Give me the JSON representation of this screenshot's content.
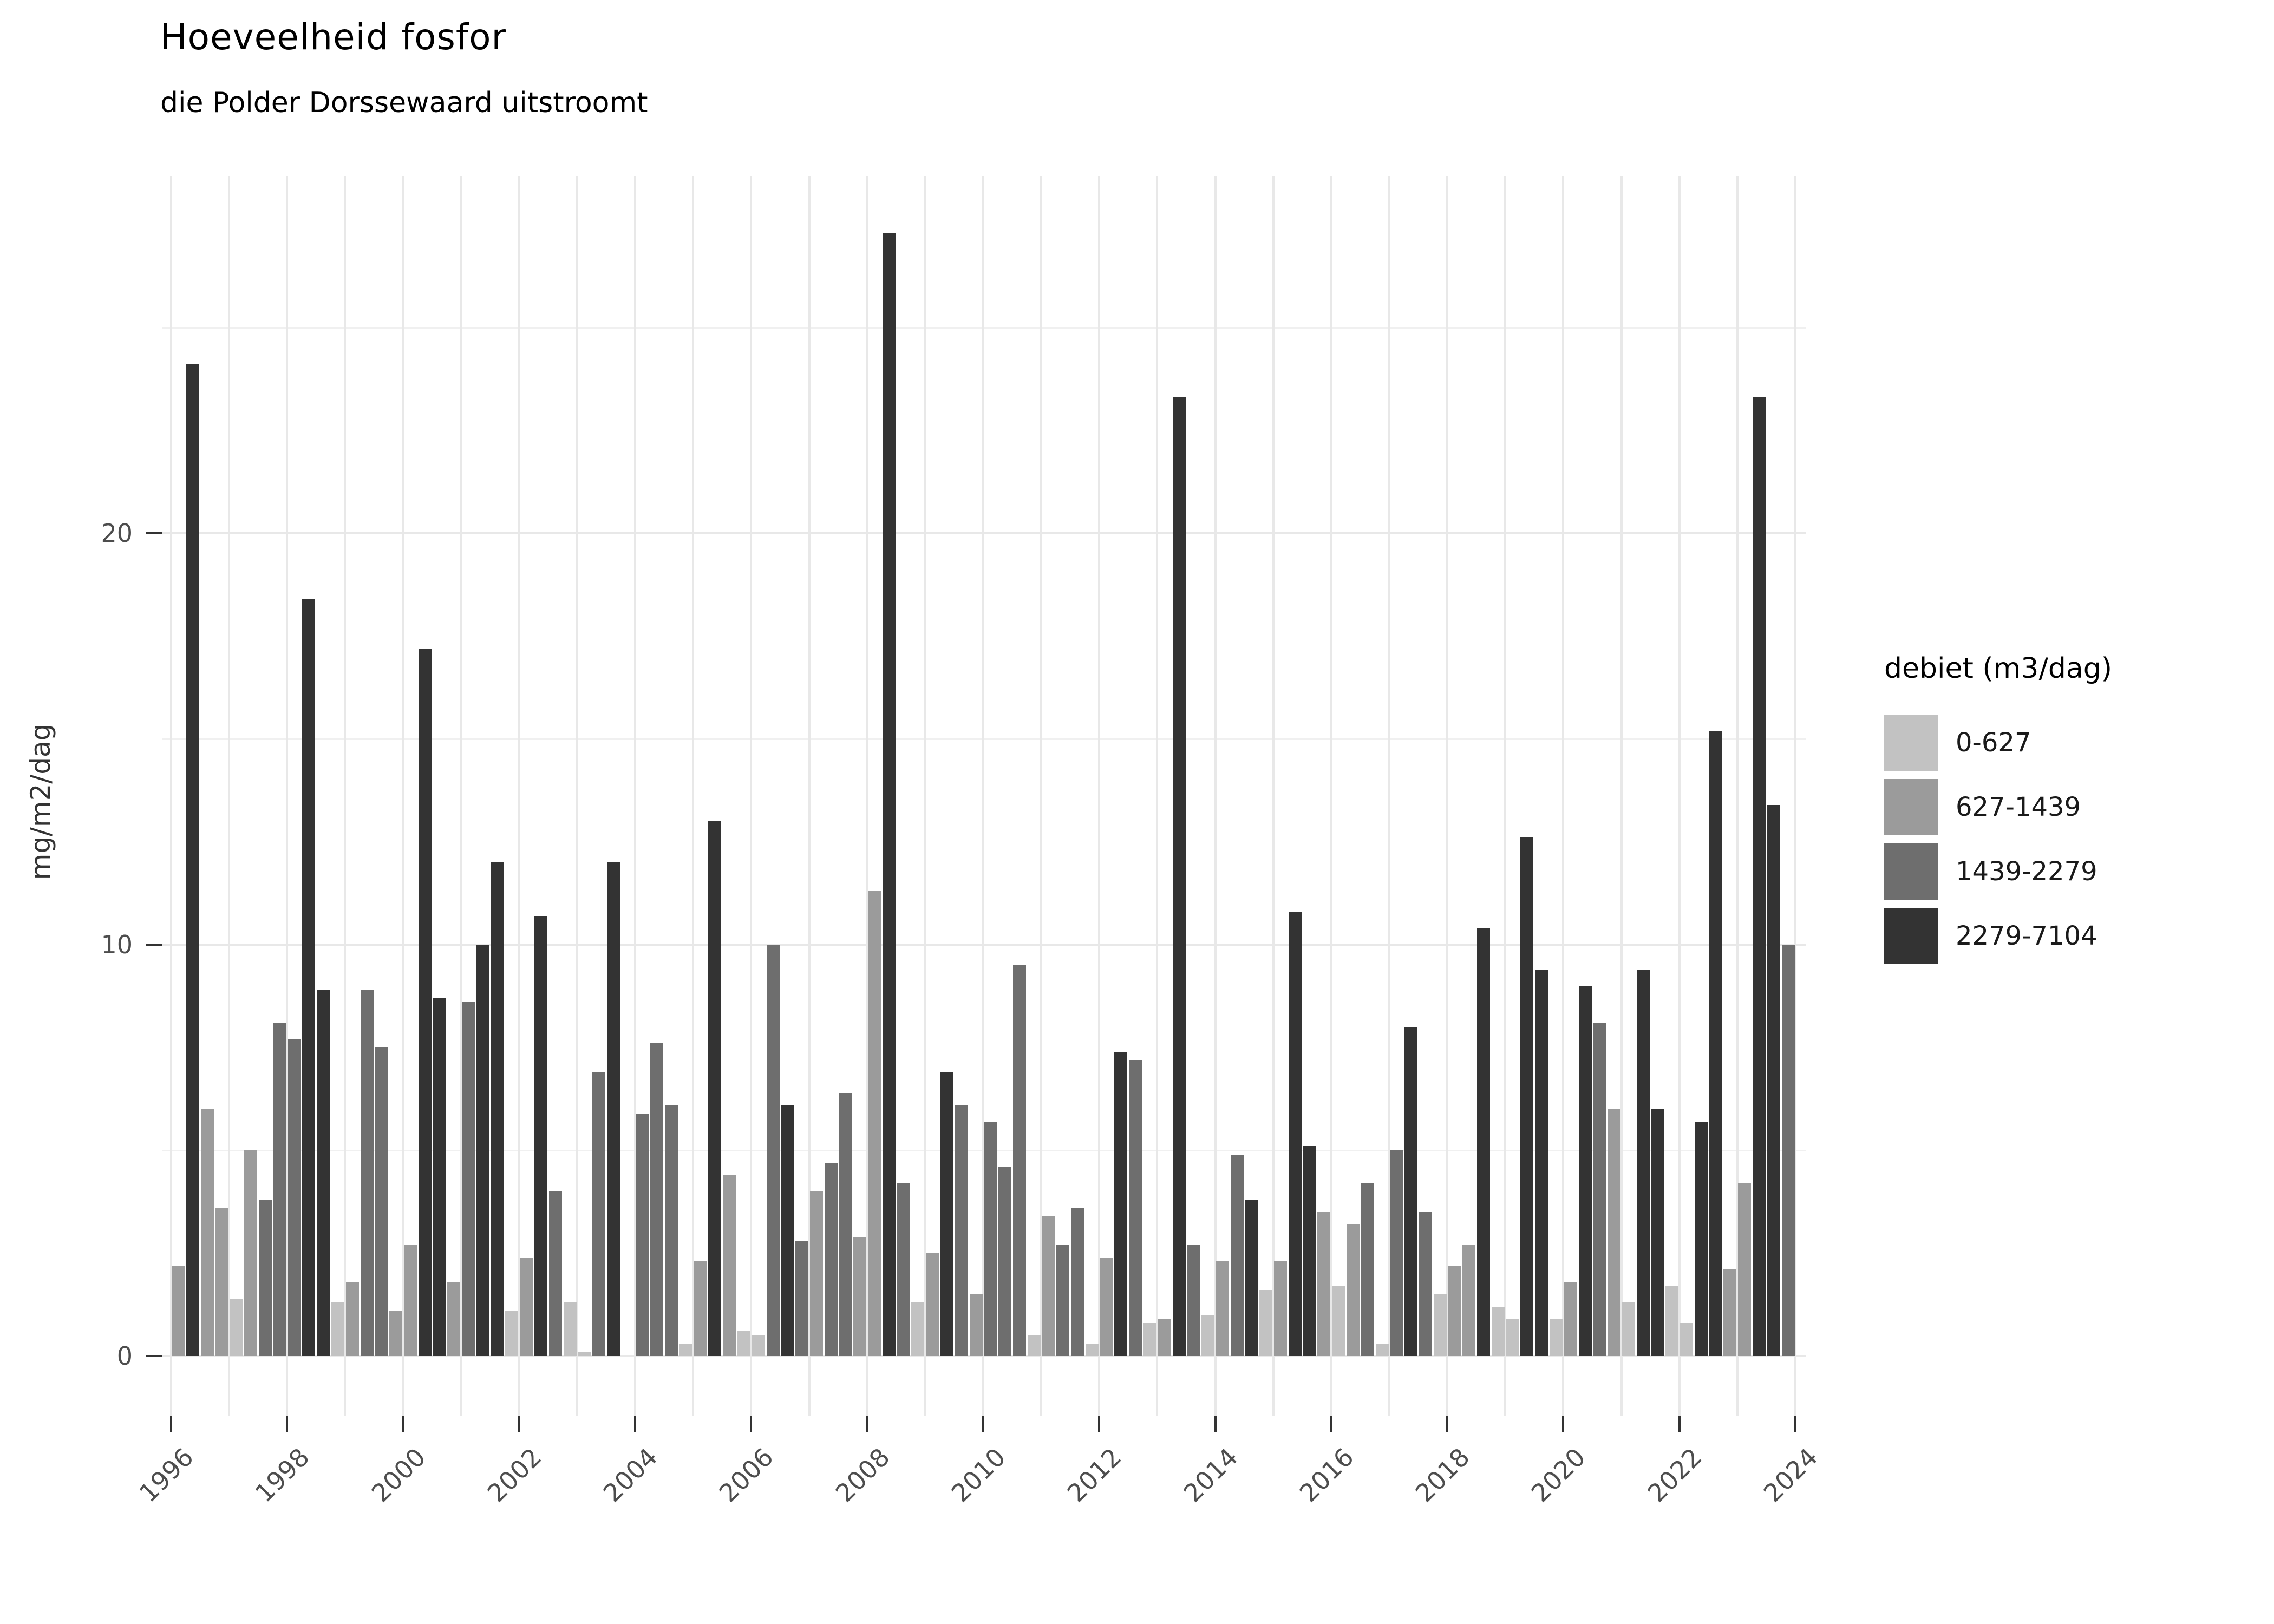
{
  "title": "Hoeveelheid fosfor",
  "subtitle": "die Polder Dorssewaard uitstroomt",
  "y_axis": {
    "label": "mg/m2/dag",
    "tick_labels": [
      "0",
      "10",
      "20"
    ],
    "tick_values": [
      0,
      10,
      20
    ],
    "minor_values": [
      5,
      15,
      25
    ]
  },
  "x_axis": {
    "tick_labels": [
      "1996",
      "1998",
      "2000",
      "2002",
      "2004",
      "2006",
      "2008",
      "2010",
      "2012",
      "2014",
      "2016",
      "2018",
      "2020",
      "2022",
      "2024"
    ],
    "tick_values": [
      1996,
      1998,
      2000,
      2002,
      2004,
      2006,
      2008,
      2010,
      2012,
      2014,
      2016,
      2018,
      2020,
      2022,
      2024
    ],
    "gridline_years_from": 1996,
    "gridline_years_to": 2024
  },
  "legend": {
    "title": "debiet (m3/dag)",
    "items": [
      {
        "label": "0-627",
        "color": "#c2c2c2"
      },
      {
        "label": "627-1439",
        "color": "#9b9b9b"
      },
      {
        "label": "1439-2279",
        "color": "#6e6e6e"
      },
      {
        "label": "2279-7104",
        "color": "#333333"
      }
    ]
  },
  "chart_data": {
    "type": "bar",
    "title": "Hoeveelheid fosfor",
    "subtitle": "die Polder Dorssewaard uitstroomt",
    "xlabel": "",
    "ylabel": "mg/m2/dag",
    "x_range": [
      1996,
      2024
    ],
    "ylim": [
      0,
      28.6
    ],
    "grid": true,
    "legend_position": "right",
    "legend_title": "debiet (m3/dag)",
    "series_format": "y=year, q=quarter(1-4), v=value in mg/m2/dag, c=debiet class (fill color key)",
    "series": [
      {
        "y": 1996,
        "q": 1,
        "v": 2.2,
        "c": "627-1439"
      },
      {
        "y": 1996,
        "q": 2,
        "v": 24.1,
        "c": "2279-7104"
      },
      {
        "y": 1996,
        "q": 3,
        "v": 6.0,
        "c": "627-1439"
      },
      {
        "y": 1996,
        "q": 4,
        "v": 3.6,
        "c": "627-1439"
      },
      {
        "y": 1997,
        "q": 1,
        "v": 1.4,
        "c": "0-627"
      },
      {
        "y": 1997,
        "q": 2,
        "v": 5.0,
        "c": "627-1439"
      },
      {
        "y": 1997,
        "q": 3,
        "v": 3.8,
        "c": "1439-2279"
      },
      {
        "y": 1997,
        "q": 4,
        "v": 8.1,
        "c": "1439-2279"
      },
      {
        "y": 1998,
        "q": 1,
        "v": 7.7,
        "c": "1439-2279"
      },
      {
        "y": 1998,
        "q": 2,
        "v": 18.4,
        "c": "2279-7104"
      },
      {
        "y": 1998,
        "q": 3,
        "v": 8.9,
        "c": "2279-7104"
      },
      {
        "y": 1998,
        "q": 4,
        "v": 1.3,
        "c": "0-627"
      },
      {
        "y": 1999,
        "q": 1,
        "v": 1.8,
        "c": "627-1439"
      },
      {
        "y": 1999,
        "q": 2,
        "v": 8.9,
        "c": "1439-2279"
      },
      {
        "y": 1999,
        "q": 3,
        "v": 7.5,
        "c": "1439-2279"
      },
      {
        "y": 1999,
        "q": 4,
        "v": 1.1,
        "c": "627-1439"
      },
      {
        "y": 2000,
        "q": 1,
        "v": 2.7,
        "c": "627-1439"
      },
      {
        "y": 2000,
        "q": 2,
        "v": 17.2,
        "c": "2279-7104"
      },
      {
        "y": 2000,
        "q": 3,
        "v": 8.7,
        "c": "2279-7104"
      },
      {
        "y": 2000,
        "q": 4,
        "v": 1.8,
        "c": "627-1439"
      },
      {
        "y": 2001,
        "q": 1,
        "v": 8.6,
        "c": "1439-2279"
      },
      {
        "y": 2001,
        "q": 2,
        "v": 10.0,
        "c": "2279-7104"
      },
      {
        "y": 2001,
        "q": 3,
        "v": 12.0,
        "c": "2279-7104"
      },
      {
        "y": 2001,
        "q": 4,
        "v": 1.1,
        "c": "0-627"
      },
      {
        "y": 2002,
        "q": 1,
        "v": 2.4,
        "c": "627-1439"
      },
      {
        "y": 2002,
        "q": 2,
        "v": 10.7,
        "c": "2279-7104"
      },
      {
        "y": 2002,
        "q": 3,
        "v": 4.0,
        "c": "1439-2279"
      },
      {
        "y": 2002,
        "q": 4,
        "v": 1.3,
        "c": "0-627"
      },
      {
        "y": 2003,
        "q": 1,
        "v": 0.1,
        "c": "0-627"
      },
      {
        "y": 2003,
        "q": 2,
        "v": 6.9,
        "c": "1439-2279"
      },
      {
        "y": 2003,
        "q": 3,
        "v": 12.0,
        "c": "2279-7104"
      },
      {
        "y": 2004,
        "q": 1,
        "v": 5.9,
        "c": "1439-2279"
      },
      {
        "y": 2004,
        "q": 2,
        "v": 7.6,
        "c": "1439-2279"
      },
      {
        "y": 2004,
        "q": 3,
        "v": 6.1,
        "c": "1439-2279"
      },
      {
        "y": 2004,
        "q": 4,
        "v": 0.3,
        "c": "0-627"
      },
      {
        "y": 2005,
        "q": 1,
        "v": 2.3,
        "c": "627-1439"
      },
      {
        "y": 2005,
        "q": 2,
        "v": 13.0,
        "c": "2279-7104"
      },
      {
        "y": 2005,
        "q": 3,
        "v": 4.4,
        "c": "627-1439"
      },
      {
        "y": 2005,
        "q": 4,
        "v": 0.6,
        "c": "0-627"
      },
      {
        "y": 2006,
        "q": 1,
        "v": 0.5,
        "c": "0-627"
      },
      {
        "y": 2006,
        "q": 2,
        "v": 10.0,
        "c": "1439-2279"
      },
      {
        "y": 2006,
        "q": 3,
        "v": 6.1,
        "c": "2279-7104"
      },
      {
        "y": 2006,
        "q": 4,
        "v": 2.8,
        "c": "1439-2279"
      },
      {
        "y": 2007,
        "q": 1,
        "v": 4.0,
        "c": "627-1439"
      },
      {
        "y": 2007,
        "q": 2,
        "v": 4.7,
        "c": "1439-2279"
      },
      {
        "y": 2007,
        "q": 3,
        "v": 6.4,
        "c": "1439-2279"
      },
      {
        "y": 2007,
        "q": 4,
        "v": 2.9,
        "c": "627-1439"
      },
      {
        "y": 2008,
        "q": 1,
        "v": 11.3,
        "c": "627-1439"
      },
      {
        "y": 2008,
        "q": 2,
        "v": 27.3,
        "c": "2279-7104"
      },
      {
        "y": 2008,
        "q": 3,
        "v": 4.2,
        "c": "1439-2279"
      },
      {
        "y": 2008,
        "q": 4,
        "v": 1.3,
        "c": "0-627"
      },
      {
        "y": 2009,
        "q": 1,
        "v": 2.5,
        "c": "627-1439"
      },
      {
        "y": 2009,
        "q": 2,
        "v": 6.9,
        "c": "2279-7104"
      },
      {
        "y": 2009,
        "q": 3,
        "v": 6.1,
        "c": "1439-2279"
      },
      {
        "y": 2009,
        "q": 4,
        "v": 1.5,
        "c": "627-1439"
      },
      {
        "y": 2010,
        "q": 1,
        "v": 5.7,
        "c": "1439-2279"
      },
      {
        "y": 2010,
        "q": 2,
        "v": 4.6,
        "c": "1439-2279"
      },
      {
        "y": 2010,
        "q": 3,
        "v": 9.5,
        "c": "1439-2279"
      },
      {
        "y": 2010,
        "q": 4,
        "v": 0.5,
        "c": "0-627"
      },
      {
        "y": 2011,
        "q": 1,
        "v": 3.4,
        "c": "627-1439"
      },
      {
        "y": 2011,
        "q": 2,
        "v": 2.7,
        "c": "1439-2279"
      },
      {
        "y": 2011,
        "q": 3,
        "v": 3.6,
        "c": "1439-2279"
      },
      {
        "y": 2011,
        "q": 4,
        "v": 0.3,
        "c": "0-627"
      },
      {
        "y": 2012,
        "q": 1,
        "v": 2.4,
        "c": "627-1439"
      },
      {
        "y": 2012,
        "q": 2,
        "v": 7.4,
        "c": "2279-7104"
      },
      {
        "y": 2012,
        "q": 3,
        "v": 7.2,
        "c": "1439-2279"
      },
      {
        "y": 2012,
        "q": 4,
        "v": 0.8,
        "c": "0-627"
      },
      {
        "y": 2013,
        "q": 1,
        "v": 0.9,
        "c": "627-1439"
      },
      {
        "y": 2013,
        "q": 2,
        "v": 23.3,
        "c": "2279-7104"
      },
      {
        "y": 2013,
        "q": 3,
        "v": 2.7,
        "c": "1439-2279"
      },
      {
        "y": 2013,
        "q": 4,
        "v": 1.0,
        "c": "0-627"
      },
      {
        "y": 2014,
        "q": 1,
        "v": 2.3,
        "c": "627-1439"
      },
      {
        "y": 2014,
        "q": 2,
        "v": 4.9,
        "c": "1439-2279"
      },
      {
        "y": 2014,
        "q": 3,
        "v": 3.8,
        "c": "2279-7104"
      },
      {
        "y": 2014,
        "q": 4,
        "v": 1.6,
        "c": "0-627"
      },
      {
        "y": 2015,
        "q": 1,
        "v": 2.3,
        "c": "627-1439"
      },
      {
        "y": 2015,
        "q": 2,
        "v": 10.8,
        "c": "2279-7104"
      },
      {
        "y": 2015,
        "q": 3,
        "v": 5.1,
        "c": "2279-7104"
      },
      {
        "y": 2015,
        "q": 4,
        "v": 3.5,
        "c": "627-1439"
      },
      {
        "y": 2016,
        "q": 1,
        "v": 1.7,
        "c": "0-627"
      },
      {
        "y": 2016,
        "q": 2,
        "v": 3.2,
        "c": "627-1439"
      },
      {
        "y": 2016,
        "q": 3,
        "v": 4.2,
        "c": "1439-2279"
      },
      {
        "y": 2016,
        "q": 4,
        "v": 0.3,
        "c": "0-627"
      },
      {
        "y": 2017,
        "q": 1,
        "v": 5.0,
        "c": "1439-2279"
      },
      {
        "y": 2017,
        "q": 2,
        "v": 8.0,
        "c": "2279-7104"
      },
      {
        "y": 2017,
        "q": 3,
        "v": 3.5,
        "c": "1439-2279"
      },
      {
        "y": 2017,
        "q": 4,
        "v": 1.5,
        "c": "0-627"
      },
      {
        "y": 2018,
        "q": 1,
        "v": 2.2,
        "c": "627-1439"
      },
      {
        "y": 2018,
        "q": 2,
        "v": 2.7,
        "c": "627-1439"
      },
      {
        "y": 2018,
        "q": 3,
        "v": 10.4,
        "c": "2279-7104"
      },
      {
        "y": 2018,
        "q": 4,
        "v": 1.2,
        "c": "0-627"
      },
      {
        "y": 2019,
        "q": 1,
        "v": 0.9,
        "c": "0-627"
      },
      {
        "y": 2019,
        "q": 2,
        "v": 12.6,
        "c": "2279-7104"
      },
      {
        "y": 2019,
        "q": 3,
        "v": 9.4,
        "c": "2279-7104"
      },
      {
        "y": 2019,
        "q": 4,
        "v": 0.9,
        "c": "0-627"
      },
      {
        "y": 2020,
        "q": 1,
        "v": 1.8,
        "c": "627-1439"
      },
      {
        "y": 2020,
        "q": 2,
        "v": 9.0,
        "c": "2279-7104"
      },
      {
        "y": 2020,
        "q": 3,
        "v": 8.1,
        "c": "1439-2279"
      },
      {
        "y": 2020,
        "q": 4,
        "v": 6.0,
        "c": "627-1439"
      },
      {
        "y": 2021,
        "q": 1,
        "v": 1.3,
        "c": "0-627"
      },
      {
        "y": 2021,
        "q": 2,
        "v": 9.4,
        "c": "2279-7104"
      },
      {
        "y": 2021,
        "q": 3,
        "v": 6.0,
        "c": "2279-7104"
      },
      {
        "y": 2021,
        "q": 4,
        "v": 1.7,
        "c": "0-627"
      },
      {
        "y": 2022,
        "q": 1,
        "v": 0.8,
        "c": "0-627"
      },
      {
        "y": 2022,
        "q": 2,
        "v": 5.7,
        "c": "2279-7104"
      },
      {
        "y": 2022,
        "q": 3,
        "v": 15.2,
        "c": "2279-7104"
      },
      {
        "y": 2022,
        "q": 4,
        "v": 2.1,
        "c": "627-1439"
      },
      {
        "y": 2023,
        "q": 1,
        "v": 4.2,
        "c": "627-1439"
      },
      {
        "y": 2023,
        "q": 2,
        "v": 23.3,
        "c": "2279-7104"
      },
      {
        "y": 2023,
        "q": 3,
        "v": 13.4,
        "c": "2279-7104"
      },
      {
        "y": 2023,
        "q": 4,
        "v": 10.0,
        "c": "1439-2279"
      }
    ]
  }
}
